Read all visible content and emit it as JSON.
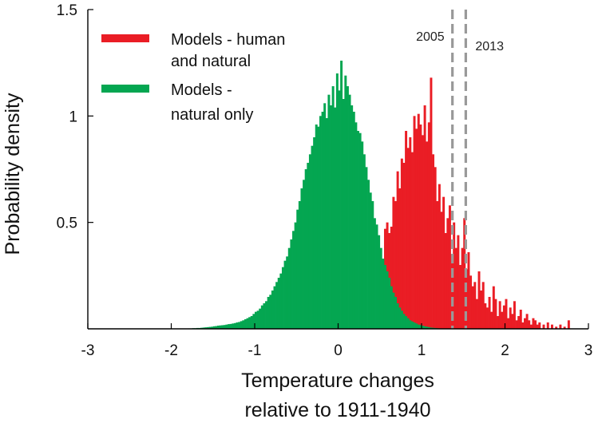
{
  "chart_data": {
    "type": "bar",
    "title": "",
    "xlabel": [
      "Temperature changes",
      "relative to 1911-1940"
    ],
    "ylabel": "Probability density",
    "xlim": [
      -3,
      3
    ],
    "ylim": [
      0,
      1.5
    ],
    "x_ticks": [
      "-3",
      "-2",
      "-1",
      "0",
      "1",
      "2",
      "3"
    ],
    "y_ticks": [
      "0.5",
      "1",
      "1.5"
    ],
    "y_tick_values": [
      0.5,
      1,
      1.5
    ],
    "x_tick_values": [
      -3,
      -2,
      -1,
      0,
      1,
      2,
      3
    ],
    "grid": false,
    "legend_position": "top-left",
    "series": [
      {
        "name": [
          "Models - human",
          "and natural"
        ],
        "color": "#ea1d25",
        "bin_width": 0.025,
        "x": [
          0.55,
          0.575,
          0.6,
          0.625,
          0.65,
          0.675,
          0.7,
          0.725,
          0.75,
          0.775,
          0.8,
          0.825,
          0.85,
          0.875,
          0.9,
          0.925,
          0.95,
          0.975,
          1.0,
          1.025,
          1.05,
          1.075,
          1.1,
          1.125,
          1.15,
          1.175,
          1.2,
          1.225,
          1.25,
          1.275,
          1.3,
          1.325,
          1.35,
          1.375,
          1.4,
          1.425,
          1.45,
          1.475,
          1.5,
          1.525,
          1.55,
          1.575,
          1.6,
          1.625,
          1.65,
          1.675,
          1.7,
          1.725,
          1.75,
          1.775,
          1.8,
          1.825,
          1.85,
          1.875,
          1.9,
          1.925,
          1.95,
          1.975,
          2.0,
          2.025,
          2.05,
          2.075,
          2.1,
          2.125,
          2.15,
          2.175,
          2.2,
          2.225,
          2.25,
          2.275,
          2.3,
          2.325,
          2.35,
          2.375,
          2.4,
          2.45,
          2.5,
          2.55,
          2.6,
          2.65,
          2.7,
          2.75
        ],
        "values": [
          0.47,
          0.5,
          0.45,
          0.48,
          0.62,
          0.6,
          0.74,
          0.66,
          0.8,
          0.78,
          0.93,
          0.85,
          0.9,
          0.83,
          1.0,
          0.94,
          1.01,
          0.96,
          0.91,
          1.05,
          0.88,
          0.97,
          1.18,
          0.82,
          0.76,
          0.6,
          0.68,
          0.55,
          0.62,
          0.45,
          0.52,
          0.58,
          0.35,
          0.5,
          0.38,
          0.44,
          0.3,
          0.38,
          0.52,
          0.28,
          0.36,
          0.25,
          0.2,
          0.22,
          0.14,
          0.27,
          0.18,
          0.22,
          0.12,
          0.1,
          0.15,
          0.08,
          0.2,
          0.14,
          0.06,
          0.13,
          0.08,
          0.11,
          0.14,
          0.05,
          0.1,
          0.07,
          0.13,
          0.04,
          0.06,
          0.09,
          0.03,
          0.05,
          0.07,
          0.04,
          0.02,
          0.05,
          0.04,
          0.02,
          0.03,
          0.02,
          0.03,
          0.02,
          0.01,
          0.02,
          0.01,
          0.04
        ]
      },
      {
        "name": [
          "Models -",
          "natural only"
        ],
        "color": "#04a651",
        "bin_width": 0.025,
        "x": [
          -1.8,
          -1.775,
          -1.75,
          -1.725,
          -1.7,
          -1.675,
          -1.65,
          -1.625,
          -1.6,
          -1.575,
          -1.55,
          -1.525,
          -1.5,
          -1.475,
          -1.45,
          -1.425,
          -1.4,
          -1.375,
          -1.35,
          -1.325,
          -1.3,
          -1.275,
          -1.25,
          -1.225,
          -1.2,
          -1.175,
          -1.15,
          -1.125,
          -1.1,
          -1.075,
          -1.05,
          -1.025,
          -1.0,
          -0.975,
          -0.95,
          -0.925,
          -0.9,
          -0.875,
          -0.85,
          -0.825,
          -0.8,
          -0.775,
          -0.75,
          -0.725,
          -0.7,
          -0.675,
          -0.65,
          -0.625,
          -0.6,
          -0.575,
          -0.55,
          -0.525,
          -0.5,
          -0.475,
          -0.45,
          -0.425,
          -0.4,
          -0.375,
          -0.35,
          -0.325,
          -0.3,
          -0.275,
          -0.25,
          -0.225,
          -0.2,
          -0.175,
          -0.15,
          -0.125,
          -0.1,
          -0.075,
          -0.05,
          -0.025,
          0.0,
          0.025,
          0.05,
          0.075,
          0.1,
          0.125,
          0.15,
          0.175,
          0.2,
          0.225,
          0.25,
          0.275,
          0.3,
          0.325,
          0.35,
          0.375,
          0.4,
          0.425,
          0.45,
          0.475,
          0.5,
          0.525,
          0.55,
          0.575,
          0.6,
          0.625,
          0.65,
          0.675,
          0.7,
          0.725,
          0.75,
          0.775,
          0.8,
          0.825,
          0.85,
          0.875,
          0.9,
          0.925,
          0.95,
          0.975,
          1.0,
          1.025,
          1.05,
          1.075,
          1.1,
          1.125,
          1.15,
          1.175,
          1.2
        ],
        "values": [
          0.002,
          0.002,
          0.003,
          0.003,
          0.004,
          0.004,
          0.005,
          0.006,
          0.007,
          0.008,
          0.009,
          0.01,
          0.012,
          0.013,
          0.015,
          0.016,
          0.017,
          0.018,
          0.02,
          0.022,
          0.023,
          0.025,
          0.027,
          0.03,
          0.032,
          0.036,
          0.04,
          0.045,
          0.05,
          0.055,
          0.06,
          0.07,
          0.08,
          0.085,
          0.095,
          0.11,
          0.12,
          0.13,
          0.15,
          0.16,
          0.18,
          0.2,
          0.22,
          0.24,
          0.26,
          0.29,
          0.32,
          0.34,
          0.38,
          0.42,
          0.46,
          0.5,
          0.56,
          0.6,
          0.66,
          0.7,
          0.75,
          0.78,
          0.82,
          0.86,
          0.9,
          0.96,
          0.95,
          1.0,
          1.02,
          1.06,
          0.99,
          1.1,
          1.05,
          1.14,
          1.04,
          1.2,
          1.12,
          1.26,
          1.08,
          1.19,
          1.14,
          1.1,
          1.05,
          1.02,
          0.97,
          0.93,
          0.92,
          0.88,
          0.82,
          0.76,
          0.7,
          0.64,
          0.6,
          0.52,
          0.49,
          0.44,
          0.38,
          0.33,
          0.3,
          0.27,
          0.24,
          0.2,
          0.17,
          0.15,
          0.12,
          0.1,
          0.085,
          0.07,
          0.06,
          0.05,
          0.04,
          0.035,
          0.03,
          0.025,
          0.02,
          0.018,
          0.015,
          0.012,
          0.01,
          0.008,
          0.006,
          0.005,
          0.004,
          0.003,
          0.002
        ]
      }
    ],
    "annotations": [
      {
        "label": "2005",
        "x": 1.37,
        "style": "dashed",
        "color": "#999999"
      },
      {
        "label": "2013",
        "x": 1.53,
        "style": "dashed",
        "color": "#999999"
      }
    ]
  }
}
